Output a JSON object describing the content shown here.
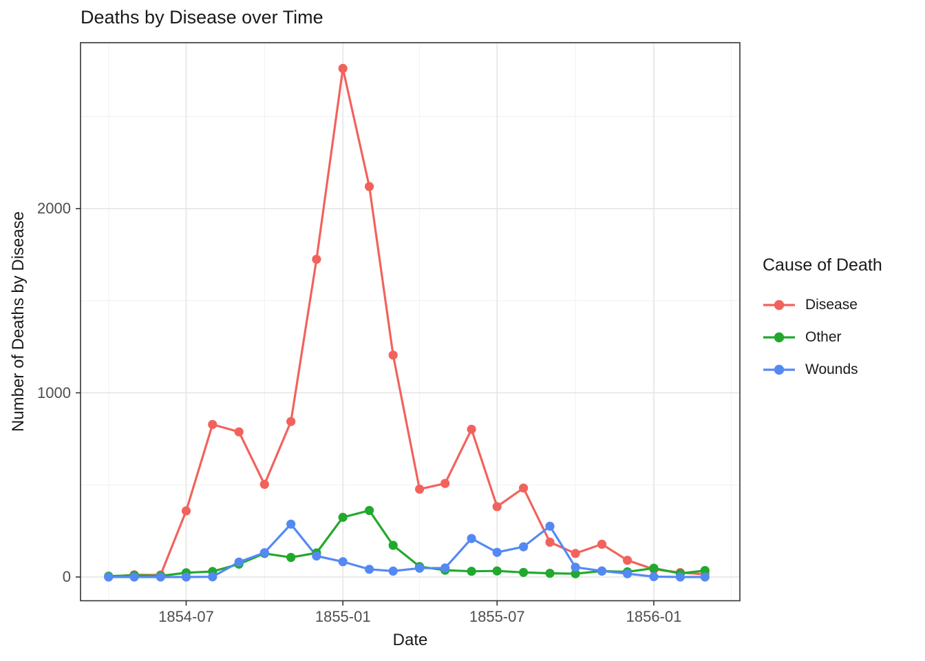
{
  "chart_data": {
    "type": "line",
    "title": "Deaths by Disease over Time",
    "xlabel": "Date",
    "ylabel": "Number of Deaths by Disease",
    "legend_title": "Cause of Death",
    "legend_position": "right",
    "grid": true,
    "x": [
      "1854-04",
      "1854-05",
      "1854-06",
      "1854-07",
      "1854-08",
      "1854-09",
      "1854-10",
      "1854-11",
      "1854-12",
      "1855-01",
      "1855-02",
      "1855-03",
      "1855-04",
      "1855-05",
      "1855-06",
      "1855-07",
      "1855-08",
      "1855-09",
      "1855-10",
      "1855-11",
      "1855-12",
      "1856-01",
      "1856-02",
      "1856-03"
    ],
    "series": [
      {
        "name": "Disease",
        "color": "#F2625C",
        "values": [
          1,
          12,
          11,
          359,
          828,
          788,
          503,
          844,
          1725,
          2761,
          2120,
          1205,
          477,
          508,
          802,
          382,
          483,
          189,
          128,
          178,
          91,
          42,
          24,
          15
        ]
      },
      {
        "name": "Other",
        "color": "#21A92D",
        "values": [
          5,
          9,
          6,
          23,
          30,
          70,
          128,
          106,
          131,
          324,
          361,
          172,
          57,
          37,
          31,
          33,
          25,
          20,
          18,
          32,
          28,
          48,
          19,
          35
        ]
      },
      {
        "name": "Wounds",
        "color": "#5489F4",
        "values": [
          0,
          0,
          0,
          0,
          1,
          81,
          132,
          287,
          114,
          83,
          42,
          32,
          48,
          49,
          209,
          134,
          164,
          276,
          53,
          33,
          18,
          2,
          0,
          0
        ]
      }
    ],
    "x_ticks": [
      {
        "label": "1854-07"
      },
      {
        "label": "1855-01"
      },
      {
        "label": "1855-07"
      },
      {
        "label": "1856-01"
      }
    ],
    "x_minor_ticks": [
      "1854-04",
      "1854-10",
      "1855-04",
      "1855-10",
      "1856-04"
    ],
    "y_ticks": [
      {
        "label": "0",
        "value": 0
      },
      {
        "label": "1000",
        "value": 1000
      },
      {
        "label": "2000",
        "value": 2000
      }
    ],
    "y_minor_ticks": [
      500,
      1500,
      2500
    ],
    "ylim": [
      0,
      2761
    ],
    "style": {
      "panel_bg": "#FFFFFF",
      "grid_major": "#E4E4E4",
      "grid_minor": "#F0F0F0",
      "panel_border": "#333333",
      "tick_color": "#333333",
      "tick_text_color": "#4D4D4D",
      "text_color": "#1A1A1A"
    }
  }
}
